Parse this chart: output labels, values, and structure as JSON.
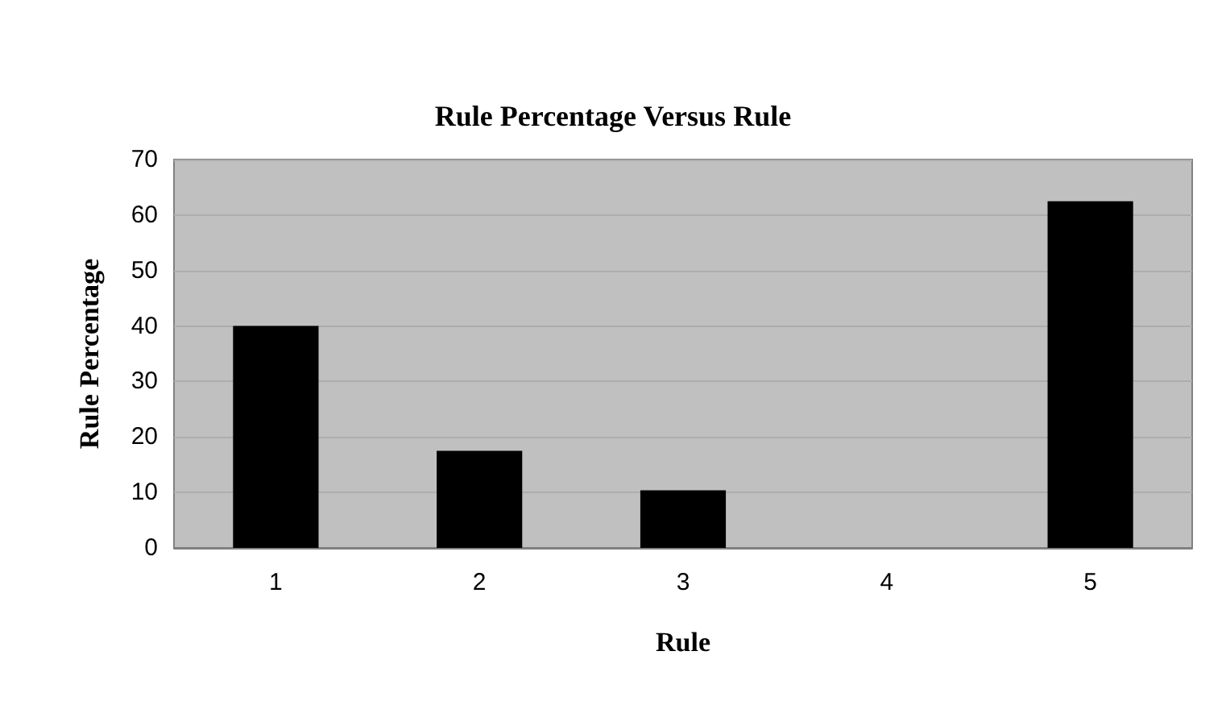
{
  "chart_data": {
    "type": "bar",
    "title": "Rule Percentage Versus Rule",
    "xlabel": "Rule",
    "ylabel": "Rule Percentage",
    "categories": [
      "1",
      "2",
      "3",
      "4",
      "5"
    ],
    "values": [
      40,
      17.5,
      10.4,
      0,
      62.5
    ],
    "color": "#000000",
    "ylim": [
      0,
      70
    ],
    "yticks": [
      0,
      10,
      20,
      30,
      40,
      50,
      60,
      70
    ],
    "grid": "y"
  }
}
